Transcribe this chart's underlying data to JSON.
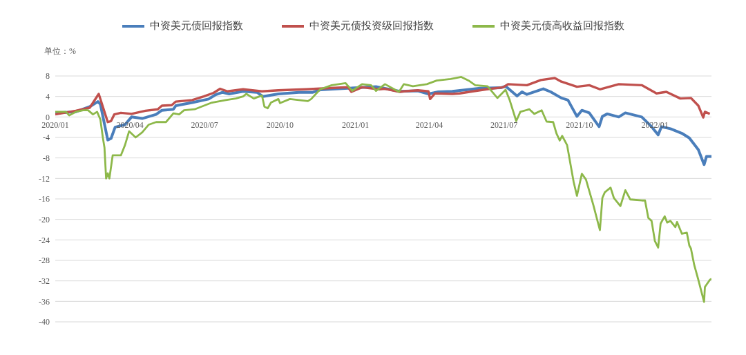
{
  "chart_data": {
    "type": "line",
    "ylabel": "单位：%",
    "legend": "top",
    "grid": "y",
    "marker": "none",
    "line_style": "solid",
    "xlim": [
      "2020-01-01",
      "2022-03-11"
    ],
    "ylim": [
      -40,
      8
    ],
    "yticks": [
      -40,
      -36,
      -32,
      -28,
      -24,
      -20,
      -16,
      -12,
      -8,
      -4,
      0,
      4,
      8
    ],
    "xticks": [
      {
        "value": "2020-01-01",
        "label": "2020/01"
      },
      {
        "value": "2020-04-01",
        "label": "2020/04"
      },
      {
        "value": "2020-07-01",
        "label": "2020/07"
      },
      {
        "value": "2020-10-01",
        "label": "2020/10"
      },
      {
        "value": "2021-01-01",
        "label": "2021/01"
      },
      {
        "value": "2021-04-01",
        "label": "2021/04"
      },
      {
        "value": "2021-07-01",
        "label": "2021/07"
      },
      {
        "value": "2021-10-01",
        "label": "2021/10"
      },
      {
        "value": "2022-01-01",
        "label": "2022/01"
      }
    ],
    "series": [
      {
        "name": "中资美元债回报指数",
        "color": "#4a7ebb",
        "x": [
          "2020-01-01",
          "2020-01-26",
          "2020-02-12",
          "2020-02-22",
          "2020-02-25",
          "2020-03-05",
          "2020-03-09",
          "2020-03-14",
          "2020-03-26",
          "2020-04-03",
          "2020-04-16",
          "2020-05-03",
          "2020-05-10",
          "2020-05-24",
          "2020-05-27",
          "2020-06-16",
          "2020-07-06",
          "2020-07-14",
          "2020-07-23",
          "2020-07-31",
          "2020-08-17",
          "2020-09-03",
          "2020-09-10",
          "2020-09-29",
          "2020-10-24",
          "2020-11-10",
          "2020-11-19",
          "2020-12-23",
          "2021-01-26",
          "2021-02-24",
          "2021-03-18",
          "2021-03-31",
          "2021-04-12",
          "2021-04-29",
          "2021-05-16",
          "2021-06-02",
          "2021-06-27",
          "2021-07-03",
          "2021-07-17",
          "2021-07-23",
          "2021-07-29",
          "2021-08-18",
          "2021-08-27",
          "2021-09-09",
          "2021-09-17",
          "2021-09-28",
          "2021-10-04",
          "2021-10-13",
          "2021-10-25",
          "2021-10-29",
          "2021-11-04",
          "2021-11-18",
          "2021-11-26",
          "2021-12-16",
          "2021-12-28",
          "2022-01-05",
          "2022-01-09",
          "2022-01-20",
          "2022-02-03",
          "2022-02-12",
          "2022-02-23",
          "2022-03-02",
          "2022-03-05",
          "2022-03-11"
        ],
        "values": [
          0.8,
          1.0,
          2.0,
          3.0,
          2.5,
          -4.5,
          -4.2,
          -2.0,
          -1.5,
          0.0,
          -0.3,
          0.5,
          1.3,
          1.5,
          2.2,
          2.8,
          3.5,
          4.3,
          4.8,
          4.5,
          5.0,
          4.8,
          4.0,
          4.5,
          4.8,
          4.8,
          5.3,
          5.6,
          5.9,
          5.0,
          5.1,
          4.5,
          4.9,
          5.0,
          5.3,
          5.6,
          5.7,
          6.0,
          4.1,
          4.9,
          4.4,
          5.5,
          4.9,
          3.7,
          3.3,
          0.1,
          1.3,
          0.8,
          -1.9,
          0.1,
          0.6,
          0.0,
          0.8,
          0.0,
          -1.9,
          -3.5,
          -1.9,
          -2.3,
          -3.2,
          -4.1,
          -6.4,
          -9.3,
          -7.7,
          -7.7
        ]
      },
      {
        "name": "中资美元债投资级回报指数",
        "color": "#c0504d",
        "x": [
          "2020-01-01",
          "2020-01-26",
          "2020-02-12",
          "2020-02-23",
          "2020-02-29",
          "2020-03-05",
          "2020-03-09",
          "2020-03-13",
          "2020-03-21",
          "2020-04-03",
          "2020-04-20",
          "2020-05-05",
          "2020-05-10",
          "2020-05-22",
          "2020-05-27",
          "2020-06-16",
          "2020-06-30",
          "2020-07-12",
          "2020-07-20",
          "2020-07-29",
          "2020-08-17",
          "2020-09-09",
          "2020-09-29",
          "2020-10-15",
          "2020-11-02",
          "2020-11-27",
          "2020-12-23",
          "2020-12-27",
          "2021-01-09",
          "2021-01-30",
          "2021-02-06",
          "2021-02-24",
          "2021-03-01",
          "2021-03-18",
          "2021-03-31",
          "2021-04-02",
          "2021-04-08",
          "2021-04-29",
          "2021-05-08",
          "2021-05-24",
          "2021-06-10",
          "2021-06-30",
          "2021-07-06",
          "2021-07-29",
          "2021-08-15",
          "2021-09-01",
          "2021-09-09",
          "2021-09-28",
          "2021-10-13",
          "2021-10-26",
          "2021-11-18",
          "2021-12-16",
          "2022-01-03",
          "2022-01-15",
          "2022-02-01",
          "2022-02-14",
          "2022-02-23",
          "2022-03-01",
          "2022-03-03",
          "2022-03-09"
        ],
        "values": [
          0.5,
          1.2,
          1.8,
          4.5,
          1.5,
          -1.0,
          -0.8,
          0.5,
          0.8,
          0.6,
          1.2,
          1.5,
          2.2,
          2.3,
          3.0,
          3.3,
          4.0,
          4.7,
          5.5,
          5.0,
          5.4,
          5.0,
          5.2,
          5.3,
          5.4,
          5.6,
          5.8,
          4.9,
          5.8,
          5.4,
          5.5,
          4.9,
          5.0,
          5.2,
          5.0,
          3.5,
          4.6,
          4.5,
          4.6,
          5.0,
          5.4,
          5.8,
          6.4,
          6.2,
          7.2,
          7.6,
          6.9,
          5.9,
          6.2,
          5.4,
          6.4,
          6.2,
          4.6,
          4.9,
          3.6,
          3.7,
          2.2,
          -0.1,
          1.0,
          0.6
        ]
      },
      {
        "name": "中资美元债高收益回报指数",
        "color": "#8db84a",
        "x": [
          "2020-01-01",
          "2020-01-14",
          "2020-01-18",
          "2020-01-26",
          "2020-02-04",
          "2020-02-10",
          "2020-02-16",
          "2020-02-21",
          "2020-02-25",
          "2020-02-28",
          "2020-03-01",
          "2020-03-03",
          "2020-03-05",
          "2020-03-07",
          "2020-03-11",
          "2020-03-21",
          "2020-03-26",
          "2020-03-31",
          "2020-04-08",
          "2020-04-16",
          "2020-04-24",
          "2020-05-03",
          "2020-05-15",
          "2020-05-24",
          "2020-05-31",
          "2020-06-06",
          "2020-06-19",
          "2020-06-27",
          "2020-07-10",
          "2020-07-27",
          "2020-08-08",
          "2020-08-17",
          "2020-08-21",
          "2020-08-30",
          "2020-09-06",
          "2020-09-09",
          "2020-09-12",
          "2020-09-16",
          "2020-09-20",
          "2020-09-29",
          "2020-10-01",
          "2020-10-13",
          "2020-11-04",
          "2020-11-08",
          "2020-11-19",
          "2020-12-03",
          "2020-12-20",
          "2020-12-28",
          "2021-01-09",
          "2021-01-20",
          "2021-01-26",
          "2021-02-06",
          "2021-02-23",
          "2021-03-01",
          "2021-03-12",
          "2021-03-29",
          "2021-04-10",
          "2021-04-27",
          "2021-05-10",
          "2021-05-19",
          "2021-05-27",
          "2021-06-11",
          "2021-06-23",
          "2021-07-03",
          "2021-07-08",
          "2021-07-16",
          "2021-07-21",
          "2021-08-01",
          "2021-08-07",
          "2021-08-16",
          "2021-08-22",
          "2021-08-30",
          "2021-09-03",
          "2021-09-07",
          "2021-09-10",
          "2021-09-16",
          "2021-09-22",
          "2021-09-24",
          "2021-09-28",
          "2021-10-04",
          "2021-10-09",
          "2021-10-18",
          "2021-10-26",
          "2021-10-29",
          "2021-11-01",
          "2021-11-08",
          "2021-11-12",
          "2021-11-20",
          "2021-11-26",
          "2021-12-02",
          "2021-12-16",
          "2021-12-20",
          "2021-12-24",
          "2021-12-28",
          "2022-01-01",
          "2022-01-05",
          "2022-01-08",
          "2022-01-13",
          "2022-01-16",
          "2022-01-20",
          "2022-01-26",
          "2022-01-28",
          "2022-02-03",
          "2022-02-09",
          "2022-02-12",
          "2022-02-14",
          "2022-02-18",
          "2022-02-23",
          "2022-03-02",
          "2022-03-03",
          "2022-03-09",
          "2022-03-11"
        ],
        "values": [
          1.0,
          1.0,
          0.3,
          1.0,
          1.3,
          1.3,
          0.5,
          1.0,
          -0.5,
          -4.0,
          -6.0,
          -12.0,
          -11.0,
          -12.0,
          -7.5,
          -7.5,
          -5.5,
          -2.8,
          -4.0,
          -3.0,
          -1.5,
          -1.0,
          -1.0,
          0.7,
          0.5,
          1.3,
          1.5,
          2.0,
          2.8,
          3.3,
          3.6,
          4.0,
          4.5,
          3.6,
          4.0,
          4.2,
          2.0,
          1.7,
          2.8,
          3.5,
          2.7,
          3.5,
          3.1,
          3.5,
          5.4,
          6.2,
          6.6,
          5.1,
          6.4,
          6.2,
          5.1,
          6.4,
          4.9,
          6.4,
          6.0,
          6.4,
          7.1,
          7.4,
          7.8,
          7.1,
          6.2,
          6.0,
          3.7,
          5.3,
          3.3,
          -0.8,
          1.0,
          1.5,
          0.6,
          1.3,
          -0.9,
          -1.0,
          -3.2,
          -4.6,
          -3.7,
          -5.5,
          -10.9,
          -12.7,
          -15.4,
          -11.1,
          -12.2,
          -17.2,
          -22.1,
          -15.8,
          -14.7,
          -13.8,
          -15.8,
          -17.4,
          -14.3,
          -16.1,
          -16.3,
          -16.3,
          -19.7,
          -20.3,
          -24.2,
          -25.5,
          -20.8,
          -19.4,
          -20.6,
          -20.3,
          -21.5,
          -20.5,
          -22.8,
          -22.6,
          -25.1,
          -25.7,
          -28.9,
          -31.8,
          -36.1,
          -33.2,
          -31.8,
          -31.6
        ]
      }
    ]
  }
}
